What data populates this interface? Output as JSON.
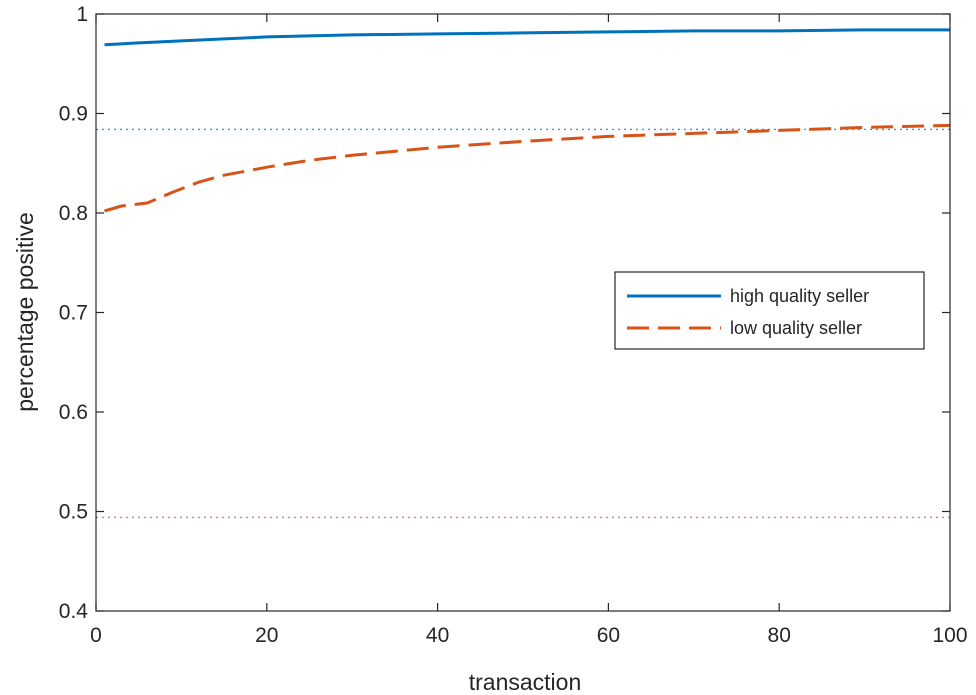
{
  "chart_data": {
    "type": "line",
    "title": "",
    "xlabel": "transaction",
    "ylabel": "percentage positive",
    "xlim": [
      0,
      100
    ],
    "ylim": [
      0.4,
      1
    ],
    "xticks": [
      0,
      20,
      40,
      60,
      80,
      100
    ],
    "yticks": [
      0.4,
      0.5,
      0.6,
      0.7,
      0.8,
      0.9,
      1
    ],
    "xtick_labels": [
      "0",
      "20",
      "40",
      "60",
      "80",
      "100"
    ],
    "ytick_labels": [
      "0.4",
      "0.5",
      "0.6",
      "0.7",
      "0.8",
      "0.9",
      "1"
    ],
    "grid": false,
    "legend_position": "right-middle",
    "series": [
      {
        "name": "high quality seller",
        "color": "#0072BD",
        "style": "solid",
        "x": [
          1,
          5,
          10,
          15,
          20,
          30,
          40,
          50,
          60,
          70,
          80,
          90,
          100
        ],
        "y": [
          0.969,
          0.971,
          0.973,
          0.975,
          0.977,
          0.979,
          0.98,
          0.981,
          0.982,
          0.983,
          0.983,
          0.984,
          0.984
        ]
      },
      {
        "name": "low quality seller",
        "color": "#D95319",
        "style": "dashed",
        "x": [
          1,
          3,
          6,
          9,
          12,
          15,
          20,
          25,
          30,
          40,
          50,
          60,
          70,
          80,
          90,
          100
        ],
        "y": [
          0.802,
          0.807,
          0.81,
          0.821,
          0.831,
          0.838,
          0.846,
          0.853,
          0.858,
          0.866,
          0.872,
          0.877,
          0.88,
          0.883,
          0.886,
          0.888
        ]
      }
    ],
    "reference_lines": [
      {
        "color": "#0072BD",
        "style": "dotted",
        "y": 0.884
      },
      {
        "color": "#D95319",
        "style": "dotted",
        "y": 0.494
      }
    ]
  }
}
